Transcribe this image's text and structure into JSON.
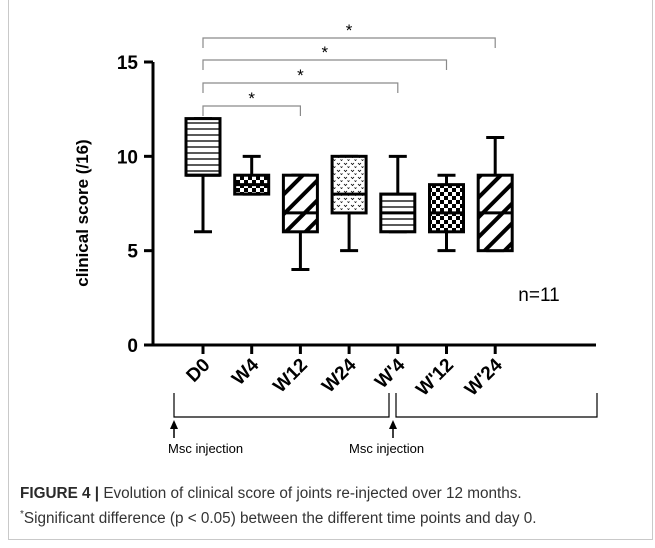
{
  "chart_data": {
    "type": "box",
    "ylabel": "clinical score (/16)",
    "ylim": [
      0,
      15
    ],
    "yticks": [
      0,
      5,
      10,
      15
    ],
    "categories": [
      "D0",
      "W4",
      "W12",
      "W24",
      "W'4",
      "W'12",
      "W'24"
    ],
    "boxes": [
      {
        "label": "D0",
        "min": 6,
        "q1": 9,
        "median": 9,
        "q3": 12,
        "max": 12,
        "pattern": "horizontal-lines"
      },
      {
        "label": "W4",
        "min": 8,
        "q1": 8,
        "median": 8.5,
        "q3": 9,
        "max": 10,
        "pattern": "checker"
      },
      {
        "label": "W12",
        "min": 4,
        "q1": 6,
        "median": 7,
        "q3": 9,
        "max": 9,
        "pattern": "wide-diagonal"
      },
      {
        "label": "W24",
        "min": 5,
        "q1": 7,
        "median": 8,
        "q3": 10,
        "max": 10,
        "pattern": "dots"
      },
      {
        "label": "W'4",
        "min": 6,
        "q1": 6,
        "median": 7,
        "q3": 8,
        "max": 10,
        "pattern": "horizontal-lines"
      },
      {
        "label": "W'12",
        "min": 5,
        "q1": 6,
        "median": 7,
        "q3": 8.5,
        "max": 9,
        "pattern": "checker"
      },
      {
        "label": "W'24",
        "min": 5,
        "q1": 5,
        "median": 7,
        "q3": 9,
        "max": 11,
        "pattern": "wide-diagonal"
      }
    ],
    "significance": [
      {
        "from": "D0",
        "to": "W'24",
        "label": "*"
      },
      {
        "from": "D0",
        "to": "W'12",
        "label": "*"
      },
      {
        "from": "D0",
        "to": "W'4",
        "label": "*"
      },
      {
        "from": "D0",
        "to": "W12",
        "label": "*"
      }
    ],
    "annotation": "n=11",
    "injection_marks": [
      {
        "label": "Msc injection",
        "at": "D0"
      },
      {
        "label": "Msc injection",
        "at": "W'4"
      }
    ],
    "grid": false,
    "colors": {
      "stroke": "#000000",
      "fill": "#ffffff",
      "bracket": "#8a8a8a"
    }
  },
  "caption": {
    "label": "FIGURE 4 |",
    "text": " Evolution of clinical score of joints re-injected over 12 months.",
    "footnote": "Significant difference (p < 0.05) between the different time points and day 0.",
    "footnote_marker": "*"
  }
}
